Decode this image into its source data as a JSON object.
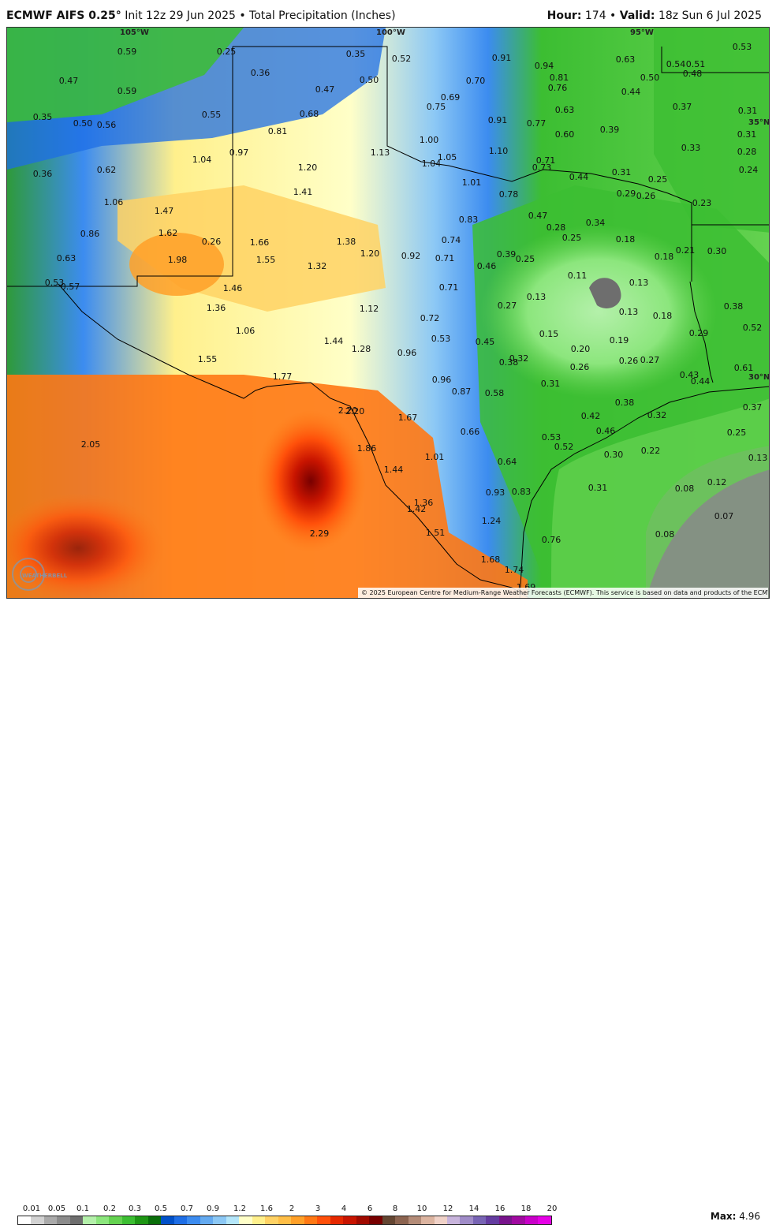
{
  "header": {
    "model": "ECMWF AIFS 0.25",
    "degree_symbol": "°",
    "init": " Init 12z 29 Jun 2025 • Total Precipitation (Inches)",
    "hour_label": "Hour:",
    "hour_value": "174",
    "valid_label": "Valid:",
    "valid_value": "18z Sun 6 Jul 2025"
  },
  "grid_labels": [
    "105°W",
    "100°W",
    "95°W",
    "35°N",
    "30°N"
  ],
  "values": [
    {
      "t": "0.59"
    },
    {
      "t": "0.25"
    },
    {
      "t": "0.35"
    },
    {
      "t": "0.52"
    },
    {
      "t": "0.91"
    },
    {
      "t": "0.94"
    },
    {
      "t": "0.63"
    },
    {
      "t": "0.54"
    },
    {
      "t": "0.51"
    },
    {
      "t": "0.53"
    },
    {
      "t": "0.47"
    },
    {
      "t": "0.36"
    },
    {
      "t": "0.50"
    },
    {
      "t": "0.81"
    },
    {
      "t": "0.70"
    },
    {
      "t": "0.50"
    },
    {
      "t": "0.48"
    },
    {
      "t": "0.59"
    },
    {
      "t": "0.47"
    },
    {
      "t": "0.76"
    },
    {
      "t": "0.44"
    },
    {
      "t": "0.75"
    },
    {
      "t": "0.69"
    },
    {
      "t": "0.37"
    },
    {
      "t": "0.55"
    },
    {
      "t": "0.68"
    },
    {
      "t": "0.63"
    },
    {
      "t": "0.31"
    },
    {
      "t": "0.35"
    },
    {
      "t": "0.50"
    },
    {
      "t": "0.56"
    },
    {
      "t": "0.81"
    },
    {
      "t": "0.91"
    },
    {
      "t": "0.77"
    },
    {
      "t": "0.60"
    },
    {
      "t": "0.39"
    },
    {
      "t": "0.31"
    },
    {
      "t": "1.00"
    },
    {
      "t": "0.33"
    },
    {
      "t": "0.97"
    },
    {
      "t": "1.13"
    },
    {
      "t": "1.10"
    },
    {
      "t": "0.28"
    },
    {
      "t": "1.04"
    },
    {
      "t": "1.05"
    },
    {
      "t": "0.71"
    },
    {
      "t": "0.36"
    },
    {
      "t": "0.62"
    },
    {
      "t": "1.20"
    },
    {
      "t": "1.04"
    },
    {
      "t": "0.73"
    },
    {
      "t": "0.44"
    },
    {
      "t": "0.31"
    },
    {
      "t": "0.25"
    },
    {
      "t": "0.24"
    },
    {
      "t": "1.01"
    },
    {
      "t": "1.41"
    },
    {
      "t": "0.78"
    },
    {
      "t": "0.29"
    },
    {
      "t": "0.26"
    },
    {
      "t": "1.06"
    },
    {
      "t": "0.23"
    },
    {
      "t": "1.47"
    },
    {
      "t": "0.47"
    },
    {
      "t": "0.83"
    },
    {
      "t": "0.28"
    },
    {
      "t": "0.34"
    },
    {
      "t": "0.86"
    },
    {
      "t": "1.62"
    },
    {
      "t": "0.74"
    },
    {
      "t": "0.25"
    },
    {
      "t": "0.18"
    },
    {
      "t": "1.66"
    },
    {
      "t": "1.38"
    },
    {
      "t": "0.26"
    },
    {
      "t": "1.20"
    },
    {
      "t": "0.92"
    },
    {
      "t": "0.71"
    },
    {
      "t": "0.39"
    },
    {
      "t": "0.21"
    },
    {
      "t": "0.30"
    },
    {
      "t": "0.63"
    },
    {
      "t": "1.98"
    },
    {
      "t": "1.55"
    },
    {
      "t": "0.25"
    },
    {
      "t": "0.18"
    },
    {
      "t": "1.32"
    },
    {
      "t": "0.46"
    },
    {
      "t": "0.11"
    },
    {
      "t": "0.53"
    },
    {
      "t": "0.57"
    },
    {
      "t": "0.13"
    },
    {
      "t": "1.46"
    },
    {
      "t": "0.71"
    },
    {
      "t": "0.13"
    },
    {
      "t": "0.38"
    },
    {
      "t": "1.36"
    },
    {
      "t": "1.12"
    },
    {
      "t": "0.27"
    },
    {
      "t": "0.13"
    },
    {
      "t": "0.72"
    },
    {
      "t": "0.18"
    },
    {
      "t": "0.52"
    },
    {
      "t": "1.06"
    },
    {
      "t": "0.15"
    },
    {
      "t": "0.29"
    },
    {
      "t": "0.19"
    },
    {
      "t": "0.53"
    },
    {
      "t": "0.45"
    },
    {
      "t": "1.44"
    },
    {
      "t": "0.20"
    },
    {
      "t": "1.28"
    },
    {
      "t": "0.96"
    },
    {
      "t": "1.55"
    },
    {
      "t": "0.38"
    },
    {
      "t": "0.32"
    },
    {
      "t": "0.26"
    },
    {
      "t": "0.26"
    },
    {
      "t": "0.27"
    },
    {
      "t": "0.61"
    },
    {
      "t": "0.43"
    },
    {
      "t": "0.44"
    },
    {
      "t": "1.77"
    },
    {
      "t": "0.96"
    },
    {
      "t": "0.31"
    },
    {
      "t": "0.87"
    },
    {
      "t": "0.58"
    },
    {
      "t": "0.38"
    },
    {
      "t": "2.20"
    },
    {
      "t": "2.20"
    },
    {
      "t": "0.37"
    },
    {
      "t": "1.67"
    },
    {
      "t": "0.42"
    },
    {
      "t": "0.32"
    },
    {
      "t": "0.66"
    },
    {
      "t": "0.46"
    },
    {
      "t": "0.25"
    },
    {
      "t": "2.05"
    },
    {
      "t": "0.53"
    },
    {
      "t": "1.86"
    },
    {
      "t": "0.52"
    },
    {
      "t": "0.22"
    },
    {
      "t": "0.30"
    },
    {
      "t": "0.13"
    },
    {
      "t": "1.01"
    },
    {
      "t": "0.64"
    },
    {
      "t": "1.44"
    },
    {
      "t": "0.12"
    },
    {
      "t": "0.31"
    },
    {
      "t": "0.08"
    },
    {
      "t": "0.93"
    },
    {
      "t": "0.83"
    },
    {
      "t": "0.07"
    },
    {
      "t": "1.36"
    },
    {
      "t": "1.42"
    },
    {
      "t": "1.24"
    },
    {
      "t": "2.29"
    },
    {
      "t": "1.51"
    },
    {
      "t": "0.08"
    },
    {
      "t": "0.76"
    },
    {
      "t": "1.68"
    },
    {
      "t": "1.74"
    },
    {
      "t": "1.69"
    }
  ],
  "copyright": "© 2025 European Centre for Medium-Range Weather Forecasts (ECMWF). This service is based on data and products of the ECMWF.",
  "logo_text": "WEATHERBELL",
  "legend": {
    "ticks": [
      "0.01",
      "0.05",
      "0.1",
      "0.2",
      "0.3",
      "0.5",
      "0.7",
      "0.9",
      "1.2",
      "1.6",
      "2",
      "3",
      "4",
      "6",
      "8",
      "10",
      "12",
      "14",
      "16",
      "18",
      "20"
    ],
    "colors": [
      "#ffffff",
      "#d2d2d2",
      "#aaaaaa",
      "#8c8c8c",
      "#6e6e6e",
      "#b4f0aa",
      "#8ce67d",
      "#64d250",
      "#3cbe32",
      "#1e9614",
      "#0a6e0a",
      "#0050c8",
      "#1e6ee6",
      "#3c8cf0",
      "#64aaf0",
      "#8cc8f5",
      "#b4e6fa",
      "#ffffc8",
      "#fff08c",
      "#ffd264",
      "#ffbe46",
      "#ffa028",
      "#ff7814",
      "#ff500a",
      "#e62800",
      "#c81400",
      "#a00a00",
      "#780000",
      "#644632",
      "#8c6450",
      "#b48c78",
      "#dcb4a0",
      "#f0d2c8",
      "#c8b4dc",
      "#a08cc8",
      "#7864b4",
      "#643ca0",
      "#78148c",
      "#a00aa0",
      "#c800c8",
      "#e600e6"
    ],
    "max_label": "Max:",
    "max_value": "4.96"
  }
}
